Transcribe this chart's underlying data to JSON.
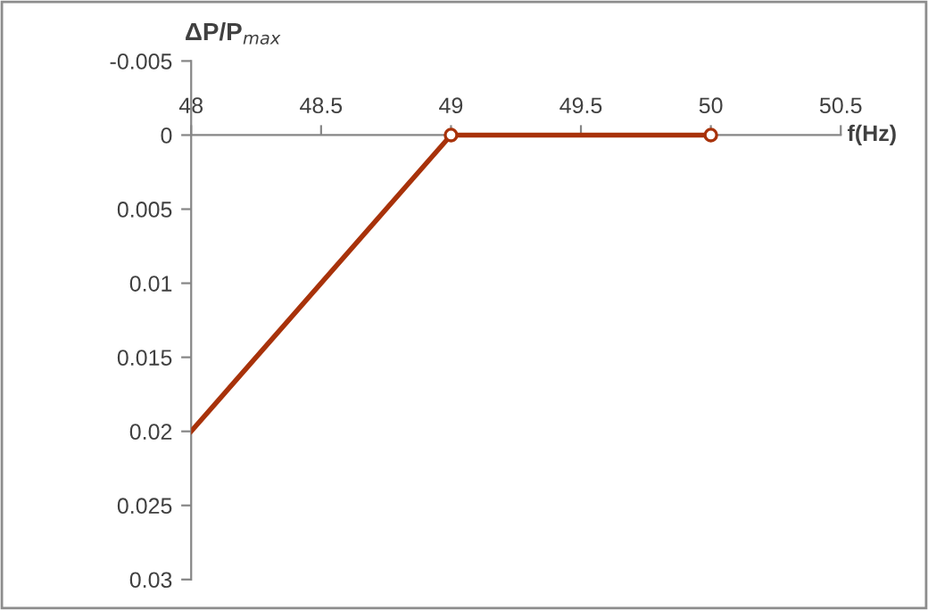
{
  "chart_data": {
    "type": "line",
    "xlabel": "f(Hz)",
    "ylabel": "ΔP/P$_{max}$",
    "series": [
      {
        "color": "#a8320a",
        "x": [
          48,
          49,
          50
        ],
        "values": [
          0.02,
          0,
          0
        ],
        "marker": "none"
      },
      {
        "type": "scatter",
        "color": "#a8320a",
        "x": [
          49,
          50
        ],
        "values": [
          0,
          0
        ],
        "marker": "circle"
      }
    ],
    "xlim": [
      48,
      50.5
    ],
    "xticks": [
      48,
      48.5,
      49,
      49.5,
      50,
      50.5
    ],
    "ylim": [
      0.03,
      -0.005
    ],
    "yticks": [
      -0.005,
      0,
      0.005,
      0.01,
      0.015,
      0.02,
      0.025,
      0.03
    ],
    "grid": false,
    "legend": false
  }
}
